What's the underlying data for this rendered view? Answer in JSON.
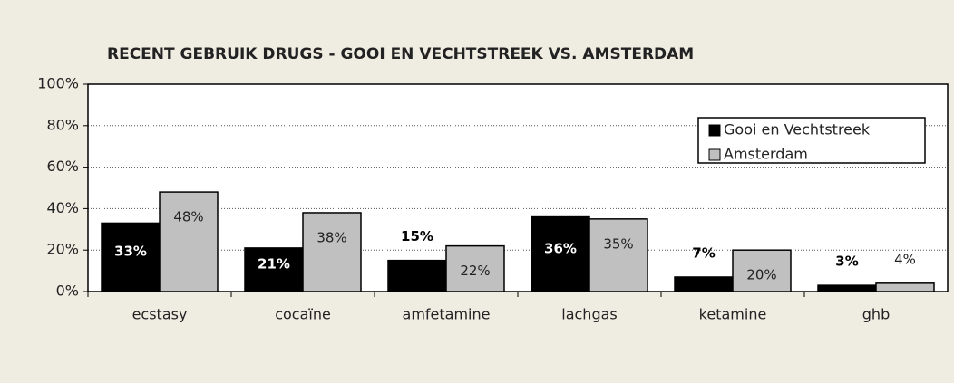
{
  "chart_data": {
    "type": "bar",
    "title": "RECENT GEBRUIK DRUGS - GOOI EN VECHTSTREEK VS. AMSTERDAM",
    "categories": [
      "ecstasy",
      "cocaïne",
      "amfetamine",
      "lachgas",
      "ketamine",
      "ghb"
    ],
    "series": [
      {
        "name": "Gooi en Vechtstreek",
        "color": "#000000",
        "values": [
          33,
          21,
          15,
          36,
          7,
          3
        ],
        "value_labels": [
          "33%",
          "21%",
          "15%",
          "36%",
          "7%",
          "3%"
        ]
      },
      {
        "name": "Amsterdam",
        "color": "#c0c0c0",
        "values": [
          48,
          38,
          22,
          35,
          20,
          4
        ],
        "value_labels": [
          "48%",
          "38%",
          "22%",
          "35%",
          "20%",
          "4%"
        ]
      }
    ],
    "ylim": [
      0,
      100
    ],
    "yticks": [
      {
        "value": 0,
        "label": "0%"
      },
      {
        "value": 20,
        "label": "20%"
      },
      {
        "value": 40,
        "label": "40%"
      },
      {
        "value": 60,
        "label": "60%"
      },
      {
        "value": 80,
        "label": "80%"
      },
      {
        "value": 100,
        "label": "100%"
      }
    ],
    "grid": true,
    "legend": "top-right"
  }
}
